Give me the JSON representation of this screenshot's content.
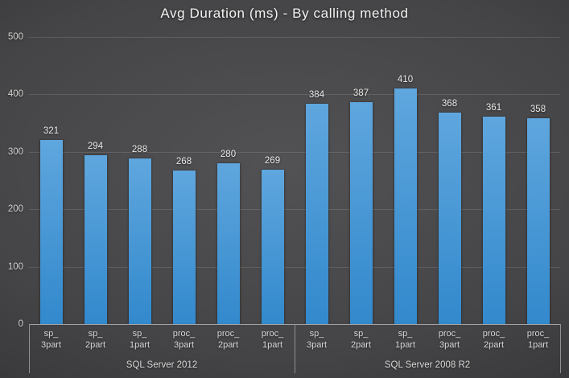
{
  "title": "Avg Duration (ms) - By calling method",
  "chart_data": {
    "type": "bar",
    "title": "Avg Duration (ms) - By calling method",
    "xlabel": "",
    "ylabel": "",
    "ylim": [
      0,
      500
    ],
    "yticks": [
      0,
      100,
      200,
      300,
      400,
      500
    ],
    "grid": "horizontal",
    "legend": "none",
    "data_labels_shown": true,
    "groups": [
      {
        "label": "SQL Server 2012",
        "categories": [
          {
            "line1": "sp_",
            "line2": "3part"
          },
          {
            "line1": "sp_",
            "line2": "2part"
          },
          {
            "line1": "sp_",
            "line2": "1part"
          },
          {
            "line1": "proc_",
            "line2": "3part"
          },
          {
            "line1": "proc_",
            "line2": "2part"
          },
          {
            "line1": "proc_",
            "line2": "1part"
          }
        ],
        "values": [
          321,
          294,
          288,
          268,
          280,
          269
        ]
      },
      {
        "label": "SQL Server 2008 R2",
        "categories": [
          {
            "line1": "sp_",
            "line2": "3part"
          },
          {
            "line1": "sp_",
            "line2": "2part"
          },
          {
            "line1": "sp_",
            "line2": "1part"
          },
          {
            "line1": "proc_",
            "line2": "3part"
          },
          {
            "line1": "proc_",
            "line2": "2part"
          },
          {
            "line1": "proc_",
            "line2": "1part"
          }
        ],
        "values": [
          384,
          387,
          410,
          368,
          361,
          358
        ]
      }
    ],
    "colors": {
      "bar_top": "#5fa6de",
      "bar_bottom": "#3289cc",
      "gridline": "rgba(255,255,255,0.12)",
      "axis_line": "#a3a3a5",
      "separator": "#909092",
      "tick_text": "#d2d2d2",
      "category_text": "#d9d9d9",
      "data_label_text": "#e8e8e8",
      "title_text": "#f2f2f2"
    }
  }
}
